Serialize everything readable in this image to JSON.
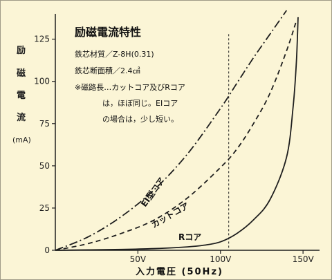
{
  "chart_data": {
    "type": "line",
    "title": "励磁電流特性",
    "notes": [
      "鉄芯材質／Z-8H(0.31)",
      "鉄芯断面積／2.4㎠",
      "※磁路長…カットコア及びRコア",
      "は，ほぼ同じ。EIコア",
      "の場合は，少し短い。"
    ],
    "ylabel_chars": [
      "励",
      "磁",
      "電",
      "流"
    ],
    "ylabel_unit": "(mA)",
    "xlabel": "入力電圧 (50Hz)",
    "y_ticks": [
      0,
      25,
      50,
      75,
      100,
      125
    ],
    "x_ticks": [
      {
        "value": 50,
        "label": "50V"
      },
      {
        "value": 100,
        "label": "100V"
      },
      {
        "value": 150,
        "label": "150V"
      }
    ],
    "xlim": [
      0,
      160
    ],
    "ylim": [
      0,
      140
    ],
    "reference_line_x": 105,
    "series": [
      {
        "name": "EI型コア",
        "style": "dashdot",
        "x": [
          0,
          20,
          40,
          60,
          80,
          100,
          110,
          120,
          130,
          140
        ],
        "y": [
          0,
          8,
          20,
          36,
          57,
          84,
          99,
          114,
          128,
          142
        ]
      },
      {
        "name": "カットコア",
        "style": "dashed",
        "x": [
          0,
          20,
          40,
          60,
          80,
          100,
          110,
          120,
          130,
          140,
          146
        ],
        "y": [
          0,
          4,
          10,
          18,
          31,
          49,
          60,
          75,
          93,
          118,
          136
        ]
      },
      {
        "name": "Rコア",
        "style": "solid",
        "x": [
          0,
          40,
          60,
          80,
          90,
          100,
          110,
          120,
          130,
          140,
          144,
          146,
          147
        ],
        "y": [
          0,
          0.5,
          1,
          2,
          3,
          5,
          10,
          18,
          30,
          55,
          85,
          112,
          138
        ]
      }
    ],
    "grid": false,
    "legend": "inline labels"
  },
  "colors": {
    "background": "#fbf5d6",
    "ink": "#1e1e1e"
  }
}
